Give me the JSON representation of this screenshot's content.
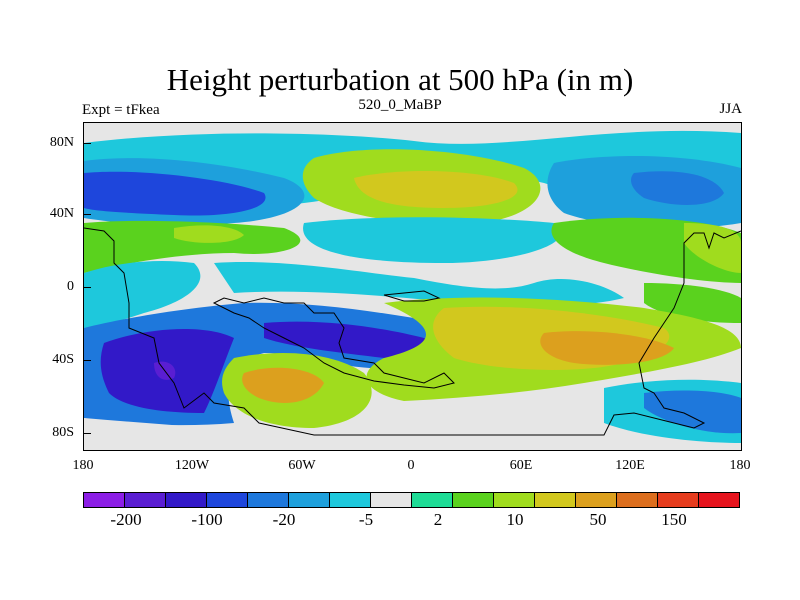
{
  "title": "Height perturbation at 500 hPa (in m)",
  "left_label": "Expt = tFkea",
  "center_label": "520_0_MaBP",
  "right_label": "JJA",
  "map": {
    "y_ticks": [
      "80N",
      "40N",
      "0",
      "40S",
      "80S"
    ],
    "x_ticks": [
      "180",
      "120W",
      "60W",
      "0",
      "60E",
      "120E",
      "180"
    ],
    "background_color": "#e6e6e6"
  },
  "colorbar": {
    "colors": [
      "#8c1ee6",
      "#5a1ed2",
      "#3219c8",
      "#1e46dc",
      "#1e78dc",
      "#1ea0dc",
      "#1ec8dc",
      "#e6e6e6",
      "#1edc96",
      "#5ad21e",
      "#a0dc1e",
      "#d2c81e",
      "#dca01e",
      "#dc6e1e",
      "#e63c1e",
      "#e6141e"
    ],
    "labels": [
      "-200",
      "-100",
      "-20",
      "-5",
      "2",
      "10",
      "50",
      "150"
    ]
  }
}
